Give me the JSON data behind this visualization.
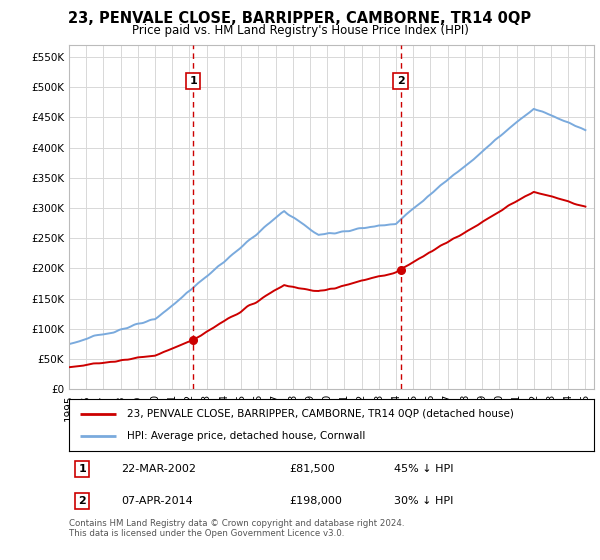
{
  "title": "23, PENVALE CLOSE, BARRIPPER, CAMBORNE, TR14 0QP",
  "subtitle": "Price paid vs. HM Land Registry's House Price Index (HPI)",
  "legend_label_red": "23, PENVALE CLOSE, BARRIPPER, CAMBORNE, TR14 0QP (detached house)",
  "legend_label_blue": "HPI: Average price, detached house, Cornwall",
  "footnote": "Contains HM Land Registry data © Crown copyright and database right 2024.\nThis data is licensed under the Open Government Licence v3.0.",
  "sale1_date": "22-MAR-2002",
  "sale1_price": "£81,500",
  "sale1_hpi": "45% ↓ HPI",
  "sale2_date": "07-APR-2014",
  "sale2_price": "£198,000",
  "sale2_hpi": "30% ↓ HPI",
  "ylim": [
    0,
    570000
  ],
  "yticks": [
    0,
    50000,
    100000,
    150000,
    200000,
    250000,
    300000,
    350000,
    400000,
    450000,
    500000,
    550000
  ],
  "background_color": "#ffffff",
  "grid_color": "#d8d8d8",
  "red_color": "#cc0000",
  "blue_color": "#7aaadd",
  "vline_color": "#cc0000",
  "sale1_year": 2002.22,
  "sale2_year": 2014.27,
  "sale1_price_val": 81500,
  "sale2_price_val": 198000
}
